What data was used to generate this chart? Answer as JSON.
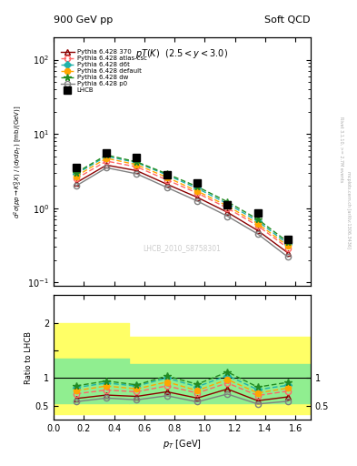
{
  "title_left": "900 GeV pp",
  "title_right": "Soft QCD",
  "subtitle": "pT(K) (2.5 < y < 3.0)",
  "ylabel_main": "d^2sigma(pprightarrowK^0_S X) / (dydp_T) [mb/(GeV)]",
  "ylabel_ratio": "Ratio to LHCB",
  "xlabel": "p_T [GeV]",
  "watermark": "LHCB_2010_S8758301",
  "right_label1": "Rivet 3.1.10, >= 2.7M events",
  "right_label2": "mcplots.cern.ch [arXiv:1306.3436]",
  "lhcb_x": [
    0.15,
    0.35,
    0.55,
    0.75,
    0.95,
    1.15,
    1.35,
    1.55
  ],
  "lhcb_y": [
    3.5,
    5.5,
    4.8,
    2.8,
    2.2,
    1.1,
    0.85,
    0.38
  ],
  "pythia_x": [
    0.15,
    0.35,
    0.55,
    0.75,
    0.95,
    1.15,
    1.35,
    1.55
  ],
  "p370_y": [
    2.2,
    3.8,
    3.2,
    2.1,
    1.4,
    0.88,
    0.5,
    0.25
  ],
  "atlas_csc_y": [
    2.5,
    4.3,
    3.6,
    2.4,
    1.6,
    1.0,
    0.58,
    0.29
  ],
  "d6t_y": [
    2.9,
    5.0,
    4.1,
    2.8,
    1.85,
    1.15,
    0.67,
    0.33
  ],
  "default_y": [
    2.7,
    4.7,
    3.85,
    2.6,
    1.7,
    1.07,
    0.62,
    0.31
  ],
  "dw_y": [
    3.0,
    5.2,
    4.2,
    2.9,
    1.95,
    1.22,
    0.71,
    0.35
  ],
  "p0_y": [
    2.0,
    3.5,
    2.9,
    1.9,
    1.25,
    0.78,
    0.45,
    0.22
  ],
  "ylim_main": [
    0.09,
    200
  ],
  "xlim": [
    0.0,
    1.7
  ],
  "ratio_ylim": [
    0.25,
    2.5
  ],
  "colors": {
    "lhcb": "#000000",
    "p370": "#8b0000",
    "atlas_csc": "#ff6666",
    "d6t": "#20b2aa",
    "default": "#ffa500",
    "dw": "#228b22",
    "p0": "#808080"
  }
}
